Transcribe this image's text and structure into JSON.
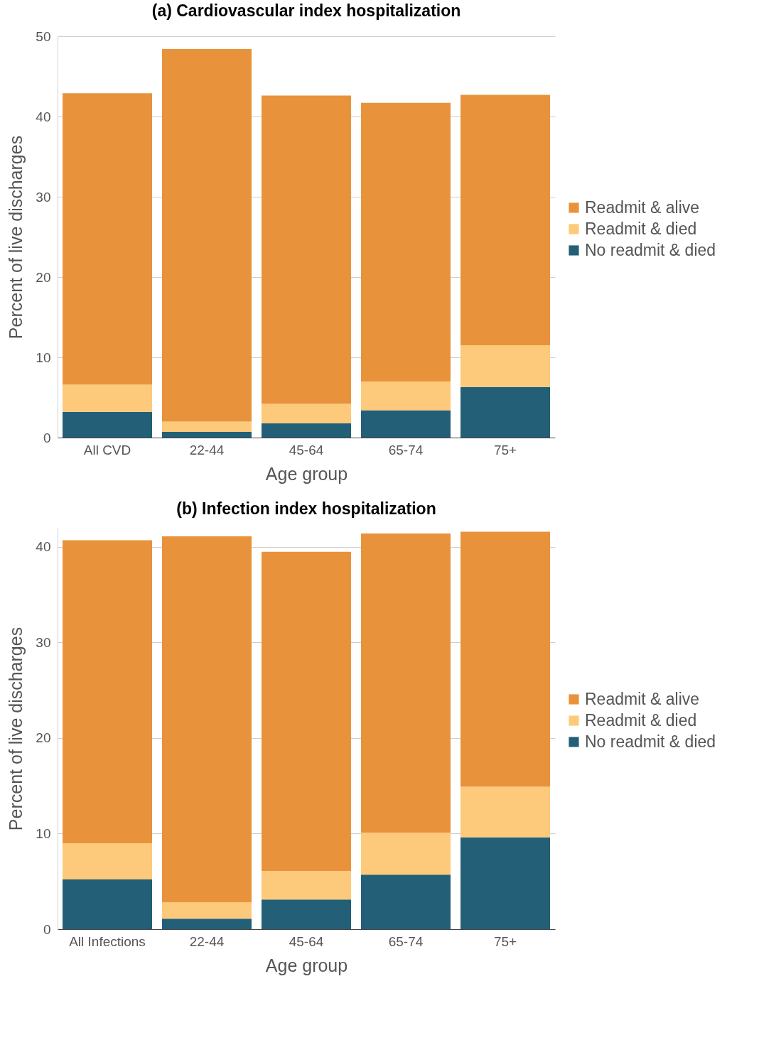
{
  "chart_data": [
    {
      "type": "bar",
      "stacked": true,
      "title": "(a) Cardiovascular index hospitalization",
      "xlabel": "Age group",
      "ylabel": "Percent of live discharges",
      "categories": [
        "All CVD",
        "22-44",
        "45-64",
        "65-74",
        "75+"
      ],
      "series": [
        {
          "name": "No readmit & died",
          "color": "#235f77",
          "values": [
            3.2,
            0.7,
            1.8,
            3.4,
            6.3
          ]
        },
        {
          "name": "Readmit & died",
          "color": "#fdc97a",
          "values": [
            3.4,
            1.3,
            2.4,
            3.6,
            5.2
          ]
        },
        {
          "name": "Readmit & alive",
          "color": "#e8933b",
          "values": [
            36.3,
            46.4,
            38.4,
            34.7,
            31.2
          ]
        }
      ],
      "ylim": [
        0,
        50
      ],
      "yticks": [
        0,
        10,
        20,
        30,
        40,
        50
      ],
      "grid": "y",
      "legend": "right"
    },
    {
      "type": "bar",
      "stacked": true,
      "title": "(b) Infection index hospitalization",
      "xlabel": "Age group",
      "ylabel": "Percent of live discharges",
      "categories": [
        "All Infections",
        "22-44",
        "45-64",
        "65-74",
        "75+"
      ],
      "series": [
        {
          "name": "No readmit & died",
          "color": "#235f77",
          "values": [
            5.2,
            1.1,
            3.1,
            5.7,
            9.6
          ]
        },
        {
          "name": "Readmit & died",
          "color": "#fdc97a",
          "values": [
            3.8,
            1.7,
            3.0,
            4.4,
            5.3
          ]
        },
        {
          "name": "Readmit & alive",
          "color": "#e8933b",
          "values": [
            31.7,
            38.3,
            33.4,
            31.3,
            26.7
          ]
        }
      ],
      "ylim": [
        0,
        42
      ],
      "yticks": [
        0,
        10,
        20,
        30,
        40
      ],
      "grid": "y",
      "legend": "right"
    }
  ]
}
